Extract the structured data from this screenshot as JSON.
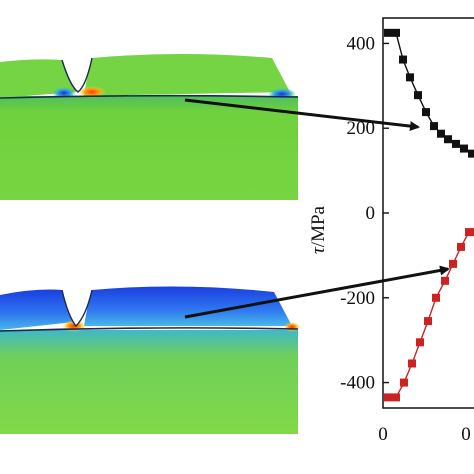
{
  "chart_data": {
    "type": "line",
    "xlabel": "",
    "ylabel": "τ/MPa",
    "ylabel_italic": "τ",
    "ylabel_unit": "/MPa",
    "ylim": [
      -460,
      460
    ],
    "yticks": [
      400,
      200,
      0,
      -200,
      -400
    ],
    "ytick_labels": [
      "400",
      "200",
      "0",
      "-200",
      "-400"
    ],
    "xlim": [
      0,
      1
    ],
    "xtick_labels": [
      "0",
      "0"
    ],
    "grid": false,
    "series": [
      {
        "color": "#111111",
        "marker": "square",
        "x": [
          0.05,
          0.13,
          0.2,
          0.27,
          0.35,
          0.43,
          0.51,
          0.58,
          0.65,
          0.73,
          0.81,
          0.89,
          0.96
        ],
        "y": [
          425,
          425,
          362,
          320,
          278,
          238,
          205,
          187,
          174,
          163,
          152,
          140,
          128
        ]
      },
      {
        "color": "#cc2222",
        "marker": "square",
        "x": [
          0.05,
          0.13,
          0.21,
          0.29,
          0.37,
          0.45,
          0.53,
          0.62,
          0.7,
          0.78,
          0.86,
          0.94
        ],
        "y": [
          -435,
          -435,
          -400,
          -355,
          -305,
          -255,
          -200,
          -160,
          -120,
          -80,
          -45,
          -45
        ]
      }
    ]
  },
  "panels": {
    "top": {
      "colors": {
        "body": "#6fd13d",
        "cap": "#7cd846",
        "stress_hot": "#e8551a",
        "stress_cold": "#2a5be0"
      }
    },
    "bottom": {
      "colors": {
        "body": "#7cd846",
        "cap": "#2d6bf0",
        "stress_hot": "#ff6a1a",
        "stress_cold": "#1a3fe0"
      }
    }
  }
}
